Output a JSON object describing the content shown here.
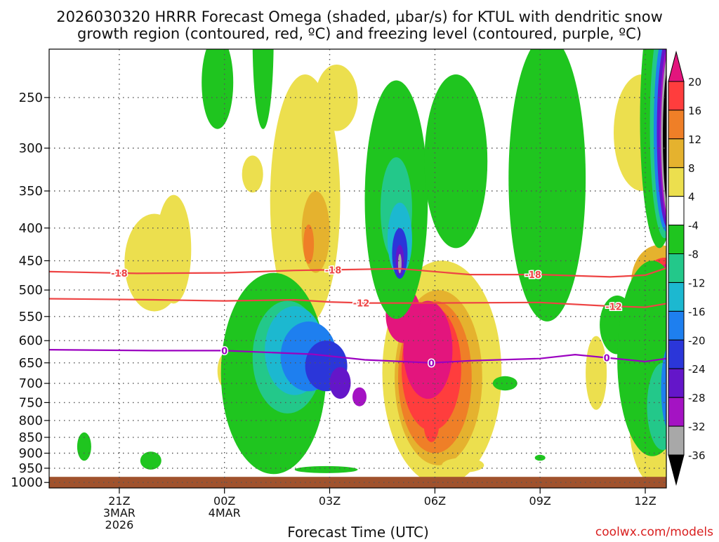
{
  "chart_data": {
    "type": "heatmap",
    "title_line1": "2026030320 HRRR Forecast Omega (shaded, µbar/s) for KTUL with dendritic snow",
    "title_line2": "growth region (contoured, red, ºC) and freezing level (contoured, purple, ºC)",
    "xlabel": "Forecast Time (UTC)",
    "ylabel": "",
    "y_axis": {
      "variable": "pressure (mb)",
      "scale": "log-pressure",
      "ticks": [
        250,
        300,
        350,
        400,
        450,
        500,
        550,
        600,
        650,
        700,
        750,
        800,
        850,
        900,
        950,
        1000
      ],
      "range": [
        210,
        1020
      ]
    },
    "x_axis": {
      "variable": "forecast hour (UTC)",
      "range_hours": [
        -1.0,
        16.6
      ],
      "ticks": [
        {
          "hour": 1,
          "lines": [
            "21Z",
            "3MAR",
            "2026"
          ]
        },
        {
          "hour": 4,
          "lines": [
            "00Z",
            "4MAR"
          ]
        },
        {
          "hour": 7,
          "lines": [
            "03Z"
          ]
        },
        {
          "hour": 10,
          "lines": [
            "06Z"
          ]
        },
        {
          "hour": 13,
          "lines": [
            "09Z"
          ]
        },
        {
          "hour": 16,
          "lines": [
            "12Z"
          ]
        }
      ]
    },
    "grid": true,
    "colorbar": {
      "orientation": "vertical",
      "placement": "right",
      "levels": [
        "20",
        "16",
        "12",
        "8",
        "4",
        "-4",
        "-8",
        "-12",
        "-16",
        "-20",
        "-24",
        "-28",
        "-32",
        "-36"
      ],
      "colors": [
        "#e3157d",
        "#ff3d3d",
        "#ef7f27",
        "#e5b22e",
        "#ecdf4e",
        "#ffffff",
        "#1fc51f",
        "#23c88a",
        "#1cb8d0",
        "#1e7fef",
        "#2b36d9",
        "#6416c9",
        "#a413c3",
        "#a8a8a8",
        "#000000"
      ]
    },
    "omega_features": [
      {
        "class": "c4",
        "h": 2.55,
        "p": 440,
        "rh": 0.5,
        "rp": 85
      },
      {
        "class": "c4",
        "h": 4.0,
        "p": 670,
        "rh": 0.2,
        "rp": 40
      },
      {
        "class": "c4",
        "h": 4.8,
        "p": 330,
        "rh": 0.3,
        "rp": 22
      },
      {
        "class": "c4",
        "h": 6.3,
        "p": 400,
        "rh": 1.0,
        "rp": 170
      },
      {
        "class": "c8",
        "h": 6.6,
        "p": 410,
        "rh": 0.4,
        "rp": 60
      },
      {
        "class": "c12",
        "h": 6.4,
        "p": 425,
        "rh": 0.15,
        "rp": 30
      },
      {
        "class": "c4",
        "h": 7.2,
        "p": 252,
        "rh": 0.6,
        "rp": 30
      },
      {
        "class": "c4",
        "h": 6.0,
        "p": 840,
        "rh": 0.2,
        "rp": 60
      },
      {
        "class": "c4",
        "h": 10.2,
        "p": 730,
        "rh": 1.7,
        "rp": 280
      },
      {
        "class": "c8",
        "h": 10.1,
        "p": 720,
        "rh": 1.25,
        "rp": 220
      },
      {
        "class": "c12",
        "h": 10.0,
        "p": 710,
        "rh": 1.05,
        "rp": 190
      },
      {
        "class": "c16",
        "h": 9.9,
        "p": 680,
        "rh": 0.85,
        "rp": 150
      },
      {
        "class": "c20",
        "h": 9.8,
        "p": 630,
        "rh": 0.7,
        "rp": 110
      },
      {
        "class": "c20",
        "h": 9.1,
        "p": 550,
        "rh": 0.5,
        "rp": 55
      },
      {
        "class": "c16",
        "h": 9.9,
        "p": 810,
        "rh": 0.22,
        "rp": 55
      },
      {
        "class": "c4",
        "h": 10.8,
        "p": 940,
        "rh": 0.6,
        "rp": 25
      },
      {
        "class": "c4",
        "h": 15.9,
        "p": 290,
        "rh": 0.8,
        "rp": 60
      },
      {
        "class": "c4",
        "h": 16.3,
        "p": 830,
        "rh": 0.75,
        "rp": 180
      },
      {
        "class": "c8",
        "h": 16.4,
        "p": 490,
        "rh": 0.8,
        "rp": 65
      },
      {
        "class": "c16",
        "h": 16.55,
        "p": 490,
        "rh": 0.6,
        "rp": 45
      },
      {
        "class": "c20",
        "h": 16.65,
        "p": 490,
        "rh": 0.45,
        "rp": 35
      },
      {
        "class": "c4",
        "h": 16.5,
        "p": 218,
        "rh": 0.25,
        "rp": 10
      },
      {
        "class": "c4",
        "h": 2.0,
        "p": 460,
        "rh": 0.85,
        "rp": 80
      },
      {
        "class": "c4",
        "h": 14.6,
        "p": 680,
        "rh": 0.3,
        "rp": 90
      },
      {
        "class": "n4",
        "h": 5.4,
        "p": 720,
        "rh": 1.5,
        "rp": 250
      },
      {
        "class": "n8",
        "h": 5.8,
        "p": 650,
        "rh": 1.0,
        "rp": 130
      },
      {
        "class": "n12",
        "h": 6.0,
        "p": 630,
        "rh": 0.85,
        "rp": 100
      },
      {
        "class": "n16",
        "h": 6.4,
        "p": 640,
        "rh": 0.8,
        "rp": 80
      },
      {
        "class": "n20",
        "h": 6.9,
        "p": 660,
        "rh": 0.6,
        "rp": 60
      },
      {
        "class": "n24",
        "h": 7.3,
        "p": 700,
        "rh": 0.3,
        "rp": 40
      },
      {
        "class": "n28",
        "h": 7.85,
        "p": 735,
        "rh": 0.2,
        "rp": 25
      },
      {
        "class": "n4",
        "h": 5.1,
        "p": 210,
        "rh": 0.3,
        "rp": 70
      },
      {
        "class": "n4",
        "h": 8.9,
        "p": 395,
        "rh": 0.9,
        "rp": 160
      },
      {
        "class": "n8",
        "h": 8.9,
        "p": 380,
        "rh": 0.45,
        "rp": 70
      },
      {
        "class": "n12",
        "h": 9.0,
        "p": 420,
        "rh": 0.35,
        "rp": 55
      },
      {
        "class": "n20",
        "h": 9.0,
        "p": 440,
        "rh": 0.22,
        "rp": 40
      },
      {
        "class": "n24",
        "h": 9.0,
        "p": 450,
        "rh": 0.12,
        "rp": 25
      },
      {
        "class": "n32",
        "h": 9.0,
        "p": 455,
        "rh": 0.05,
        "rp": 16
      },
      {
        "class": "n4",
        "h": 10.6,
        "p": 330,
        "rh": 0.9,
        "rp": 100
      },
      {
        "class": "n4",
        "h": 13.2,
        "p": 380,
        "rh": 1.1,
        "rp": 180
      },
      {
        "class": "n4",
        "h": 15.2,
        "p": 570,
        "rh": 0.5,
        "rp": 60
      },
      {
        "class": "n4",
        "h": 6.9,
        "p": 955,
        "rh": 0.9,
        "rp": 12
      },
      {
        "class": "n4",
        "h": 0.0,
        "p": 880,
        "rh": 0.2,
        "rp": 45
      },
      {
        "class": "n4",
        "h": 1.9,
        "p": 925,
        "rh": 0.3,
        "rp": 30
      },
      {
        "class": "n4",
        "h": 12.0,
        "p": 700,
        "rh": 0.35,
        "rp": 18
      },
      {
        "class": "n4",
        "h": 13.0,
        "p": 915,
        "rh": 0.15,
        "rp": 10
      },
      {
        "class": "n4",
        "h": 3.8,
        "p": 240,
        "rh": 0.45,
        "rp": 40
      },
      {
        "class": "n4",
        "h": 16.2,
        "p": 680,
        "rh": 1.0,
        "rp": 230
      },
      {
        "class": "n8",
        "h": 16.5,
        "p": 770,
        "rh": 0.45,
        "rp": 120
      },
      {
        "class": "n16",
        "h": 16.7,
        "p": 720,
        "rh": 0.25,
        "rp": 110
      },
      {
        "class": "n4",
        "h": 16.4,
        "p": 300,
        "rh": 0.55,
        "rp": 130
      },
      {
        "class": "n8",
        "h": 16.55,
        "p": 300,
        "rh": 0.42,
        "rp": 115
      },
      {
        "class": "n16",
        "h": 16.6,
        "p": 300,
        "rh": 0.36,
        "rp": 105
      },
      {
        "class": "n24",
        "h": 16.65,
        "p": 300,
        "rh": 0.32,
        "rp": 100
      },
      {
        "class": "n28",
        "h": 16.7,
        "p": 300,
        "rh": 0.29,
        "rp": 95
      },
      {
        "class": "n32",
        "h": 16.72,
        "p": 300,
        "rh": 0.27,
        "rp": 90
      },
      {
        "class": "n36",
        "h": 16.75,
        "p": 300,
        "rh": 0.25,
        "rp": 85
      }
    ],
    "contours": [
      {
        "name": "dgz-top",
        "label": "-18",
        "color": "#ee4444",
        "points": [
          [
            -1.0,
            468
          ],
          [
            1.5,
            471
          ],
          [
            4.0,
            470
          ],
          [
            6.0,
            466
          ],
          [
            7.0,
            465
          ],
          [
            9.0,
            463
          ],
          [
            11.0,
            473
          ],
          [
            13.0,
            473
          ],
          [
            15.0,
            477
          ],
          [
            16.0,
            474
          ],
          [
            16.6,
            462
          ]
        ],
        "label_hours": [
          1.0,
          7.1,
          12.8
        ]
      },
      {
        "name": "dgz-bottom",
        "label": "-12",
        "color": "#ee4444",
        "points": [
          [
            -1.0,
            516
          ],
          [
            2.0,
            518
          ],
          [
            4.0,
            520
          ],
          [
            6.0,
            518
          ],
          [
            7.0,
            522
          ],
          [
            8.0,
            524
          ],
          [
            10.0,
            524
          ],
          [
            13.0,
            523
          ],
          [
            15.0,
            530
          ],
          [
            16.0,
            532
          ],
          [
            16.6,
            525
          ]
        ],
        "label_hours": [
          7.9,
          15.1
        ]
      },
      {
        "name": "freezing-level",
        "label": "0",
        "color": "#9b00c0",
        "points": [
          [
            -1.0,
            620
          ],
          [
            2.0,
            622
          ],
          [
            4.0,
            622
          ],
          [
            6.5,
            630
          ],
          [
            8.0,
            643
          ],
          [
            9.9,
            650
          ],
          [
            11.0,
            645
          ],
          [
            13.0,
            640
          ],
          [
            14.0,
            631
          ],
          [
            16.0,
            647
          ],
          [
            16.6,
            640
          ]
        ],
        "label_hours": [
          4.0,
          9.9,
          14.9
        ]
      }
    ],
    "ground_layer": {
      "from_p": 980,
      "to_p": 1020,
      "color": "#a0522d"
    }
  },
  "credit": "coolwx.com/models",
  "colors": {
    "frame": "#000000",
    "grid": "#555555",
    "text": "#111111",
    "credit": "#d91e1e"
  }
}
